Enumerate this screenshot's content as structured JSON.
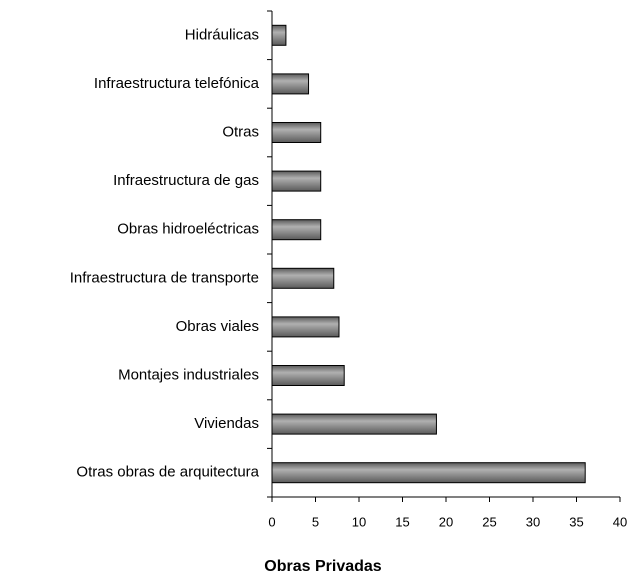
{
  "chart_data": {
    "type": "bar",
    "orientation": "horizontal",
    "title": "Obras Privadas",
    "categories": [
      "Hidráulicas",
      "Infraestructura telefónica",
      "Otras",
      "Infraestructura de gas",
      "Obras hidroeléctricas",
      "Infraestructura de transporte",
      "Obras viales",
      "Montajes industriales",
      "Viviendas",
      "Otras obras de arquitectura"
    ],
    "values": [
      1.6,
      4.2,
      5.6,
      5.6,
      5.6,
      7.1,
      7.7,
      8.3,
      18.9,
      36
    ],
    "color": "#5a5a5a",
    "xlim": [
      0,
      40
    ],
    "xticks": [
      0,
      5,
      10,
      15,
      20,
      25,
      30,
      35,
      40
    ],
    "grid": false
  }
}
